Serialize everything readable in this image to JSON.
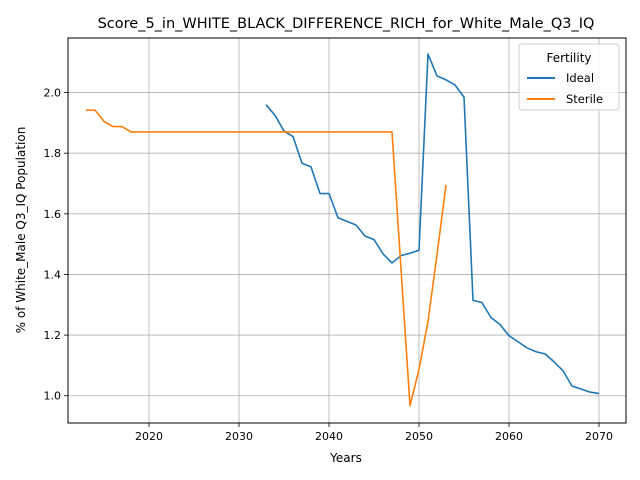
{
  "chart_data": {
    "type": "line",
    "title": "Score_5_in_WHITE_BLACK_DIFFERENCE_RICH_for_White_Male_Q3_IQ",
    "xlabel": "Years",
    "ylabel": "% of White_Male Q3_IQ Population",
    "xlim": [
      2011,
      2073
    ],
    "ylim": [
      0.91,
      2.18
    ],
    "xticks": [
      2020,
      2030,
      2040,
      2050,
      2060,
      2070
    ],
    "yticks": [
      1.0,
      1.2,
      1.4,
      1.6,
      1.8,
      2.0
    ],
    "xtick_labels": [
      "2020",
      "2030",
      "2040",
      "2050",
      "2060",
      "2070"
    ],
    "ytick_labels": [
      "1.0",
      "1.2",
      "1.4",
      "1.6",
      "1.8",
      "2.0"
    ],
    "grid": true,
    "legend": {
      "title": "Fertility",
      "placement": "top-right"
    },
    "series": [
      {
        "name": "Ideal",
        "color": "#1f77b4",
        "x": [
          2033,
          2034,
          2035,
          2036,
          2037,
          2038,
          2039,
          2040,
          2041,
          2042,
          2043,
          2044,
          2045,
          2046,
          2047,
          2048,
          2049,
          2050,
          2051,
          2052,
          2053,
          2054,
          2055,
          2056,
          2057,
          2058,
          2059,
          2060,
          2061,
          2062,
          2063,
          2064,
          2065,
          2066,
          2067,
          2068,
          2069,
          2070
        ],
        "y": [
          1.96,
          1.925,
          1.873,
          1.855,
          1.767,
          1.755,
          1.667,
          1.667,
          1.587,
          1.575,
          1.563,
          1.527,
          1.515,
          1.468,
          1.438,
          1.462,
          1.47,
          1.48,
          2.127,
          2.055,
          2.042,
          2.025,
          1.985,
          1.315,
          1.307,
          1.258,
          1.235,
          1.198,
          1.178,
          1.158,
          1.145,
          1.138,
          1.112,
          1.082,
          1.032,
          1.022,
          1.012,
          1.007
        ]
      },
      {
        "name": "Sterile",
        "color": "#ff7f0e",
        "x": [
          2013,
          2014,
          2015,
          2016,
          2017,
          2018,
          2019,
          2020,
          2025,
          2030,
          2035,
          2040,
          2045,
          2047,
          2049,
          2050,
          2051,
          2052,
          2053
        ],
        "y": [
          1.942,
          1.942,
          1.905,
          1.888,
          1.888,
          1.87,
          1.87,
          1.87,
          1.87,
          1.87,
          1.87,
          1.87,
          1.87,
          1.87,
          0.967,
          1.087,
          1.245,
          1.465,
          1.695
        ]
      }
    ]
  }
}
